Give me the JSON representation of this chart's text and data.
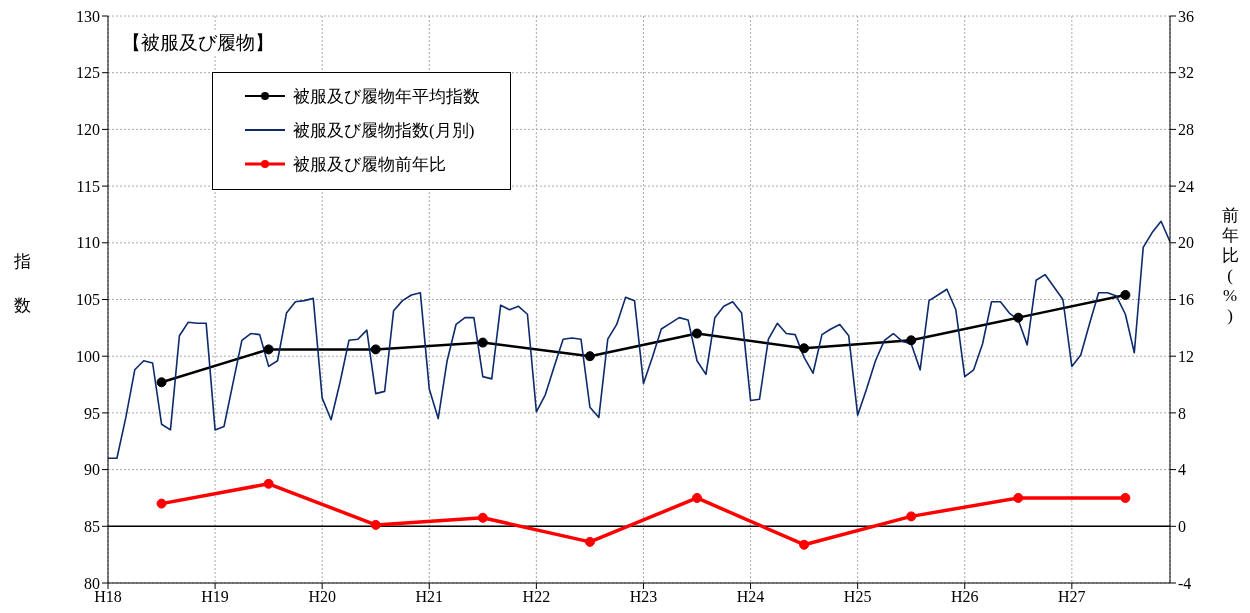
{
  "chart_data": {
    "type": "line",
    "annotations": [
      "【被服及び履物】"
    ],
    "ylabel": "指数",
    "y2label": "前年比(%)",
    "categories": [
      "H18",
      null,
      null,
      null,
      null,
      null,
      null,
      null,
      null,
      null,
      null,
      null,
      "H19",
      null,
      null,
      null,
      null,
      null,
      null,
      null,
      null,
      null,
      null,
      null,
      "H20",
      null,
      null,
      null,
      null,
      null,
      null,
      null,
      null,
      null,
      null,
      null,
      "H21",
      null,
      null,
      null,
      null,
      null,
      null,
      null,
      null,
      null,
      null,
      null,
      "H22",
      null,
      null,
      null,
      null,
      null,
      null,
      null,
      null,
      null,
      null,
      null,
      "H23",
      null,
      null,
      null,
      null,
      null,
      null,
      null,
      null,
      null,
      null,
      null,
      "H24",
      null,
      null,
      null,
      null,
      null,
      null,
      null,
      null,
      null,
      null,
      null,
      "H25",
      null,
      null,
      null,
      null,
      null,
      null,
      null,
      null,
      null,
      null,
      null,
      "H26",
      null,
      null,
      null,
      null,
      null,
      null,
      null,
      null,
      null,
      null,
      null,
      "H27",
      null,
      null,
      null,
      null,
      null,
      null,
      null,
      null,
      null,
      null,
      null
    ],
    "series": [
      {
        "name": "被服及び履物年平均指数",
        "color": "#000000",
        "marker": "circle",
        "values": [
          null,
          null,
          null,
          null,
          null,
          null,
          97.7,
          null,
          null,
          null,
          null,
          null,
          null,
          null,
          null,
          null,
          null,
          null,
          100.6,
          null,
          null,
          null,
          null,
          null,
          null,
          null,
          null,
          null,
          null,
          null,
          100.6,
          null,
          null,
          null,
          null,
          null,
          null,
          null,
          null,
          null,
          null,
          null,
          101.2,
          null,
          null,
          null,
          null,
          null,
          null,
          null,
          null,
          null,
          null,
          null,
          100.0,
          null,
          null,
          null,
          null,
          null,
          null,
          null,
          null,
          null,
          null,
          null,
          102.0,
          null,
          null,
          null,
          null,
          null,
          null,
          null,
          null,
          null,
          null,
          null,
          100.7,
          null,
          null,
          null,
          null,
          null,
          null,
          null,
          null,
          null,
          null,
          null,
          101.4,
          null,
          null,
          null,
          null,
          null,
          null,
          null,
          null,
          null,
          null,
          null,
          103.4,
          null,
          null,
          null,
          null,
          null,
          null,
          null,
          null,
          null,
          null,
          null,
          105.4,
          null,
          null,
          null,
          null,
          null
        ]
      },
      {
        "name": "被服及び履物指数(月別)",
        "color": "#0d2a6b",
        "marker": "none",
        "values": [
          91.0,
          91.0,
          94.6,
          98.8,
          99.6,
          99.4,
          94.0,
          93.5,
          101.8,
          103.0,
          102.9,
          102.9,
          93.5,
          93.8,
          97.6,
          101.4,
          102.0,
          101.9,
          99.1,
          99.6,
          103.8,
          104.8,
          104.9,
          105.1,
          96.3,
          94.4,
          97.7,
          101.4,
          101.5,
          102.3,
          96.7,
          96.9,
          104.0,
          104.9,
          105.4,
          105.6,
          97.1,
          94.5,
          99.6,
          102.8,
          103.4,
          103.4,
          98.2,
          98.0,
          104.5,
          104.1,
          104.4,
          103.7,
          95.1,
          96.6,
          99.1,
          101.5,
          101.6,
          101.5,
          95.5,
          94.6,
          101.5,
          102.8,
          105.2,
          104.9,
          97.6,
          99.9,
          102.4,
          102.9,
          103.4,
          103.2,
          99.6,
          98.4,
          103.4,
          104.4,
          104.8,
          103.8,
          96.1,
          96.2,
          101.5,
          102.9,
          102.0,
          101.9,
          99.9,
          98.5,
          101.9,
          102.4,
          102.8,
          101.8,
          94.8,
          97.1,
          99.6,
          101.4,
          102.0,
          101.3,
          101.1,
          98.8,
          104.9,
          105.4,
          105.9,
          104.1,
          98.2,
          98.8,
          101.1,
          104.8,
          104.8,
          103.8,
          103.2,
          101.0,
          106.7,
          107.2,
          106.1,
          105.0,
          99.1,
          100.1,
          102.9,
          105.6,
          105.6,
          105.3,
          103.7,
          100.3,
          109.6,
          110.9,
          111.9,
          110.1
        ]
      },
      {
        "name": "被服及び履物前年比",
        "color": "#ff0000",
        "marker": "circle",
        "axis": "y2",
        "values": [
          null,
          null,
          null,
          null,
          null,
          null,
          1.6,
          null,
          null,
          null,
          null,
          null,
          null,
          null,
          null,
          null,
          null,
          null,
          3.0,
          null,
          null,
          null,
          null,
          null,
          null,
          null,
          null,
          null,
          null,
          null,
          0.1,
          null,
          null,
          null,
          null,
          null,
          null,
          null,
          null,
          null,
          null,
          null,
          0.6,
          null,
          null,
          null,
          null,
          null,
          null,
          null,
          null,
          null,
          null,
          null,
          -1.1,
          null,
          null,
          null,
          null,
          null,
          null,
          null,
          null,
          null,
          null,
          null,
          2.0,
          null,
          null,
          null,
          null,
          null,
          null,
          null,
          null,
          null,
          null,
          null,
          -1.3,
          null,
          null,
          null,
          null,
          null,
          null,
          null,
          null,
          null,
          null,
          null,
          0.7,
          null,
          null,
          null,
          null,
          null,
          null,
          null,
          null,
          null,
          null,
          null,
          2.0,
          null,
          null,
          null,
          null,
          null,
          null,
          null,
          null,
          null,
          null,
          null,
          2.0,
          null,
          null,
          null,
          null,
          null
        ]
      }
    ],
    "ylim": [
      80,
      130
    ],
    "yticks": [
      80,
      85,
      90,
      95,
      100,
      105,
      110,
      115,
      120,
      125,
      130
    ],
    "y2lim": [
      -4,
      36
    ],
    "y2ticks": [
      -4,
      0,
      4,
      8,
      12,
      16,
      20,
      24,
      28,
      32,
      36
    ],
    "ref_lines": [
      {
        "axis": "y2",
        "value": 0,
        "color": "#000000"
      }
    ],
    "grid": true,
    "legend": "top left"
  }
}
